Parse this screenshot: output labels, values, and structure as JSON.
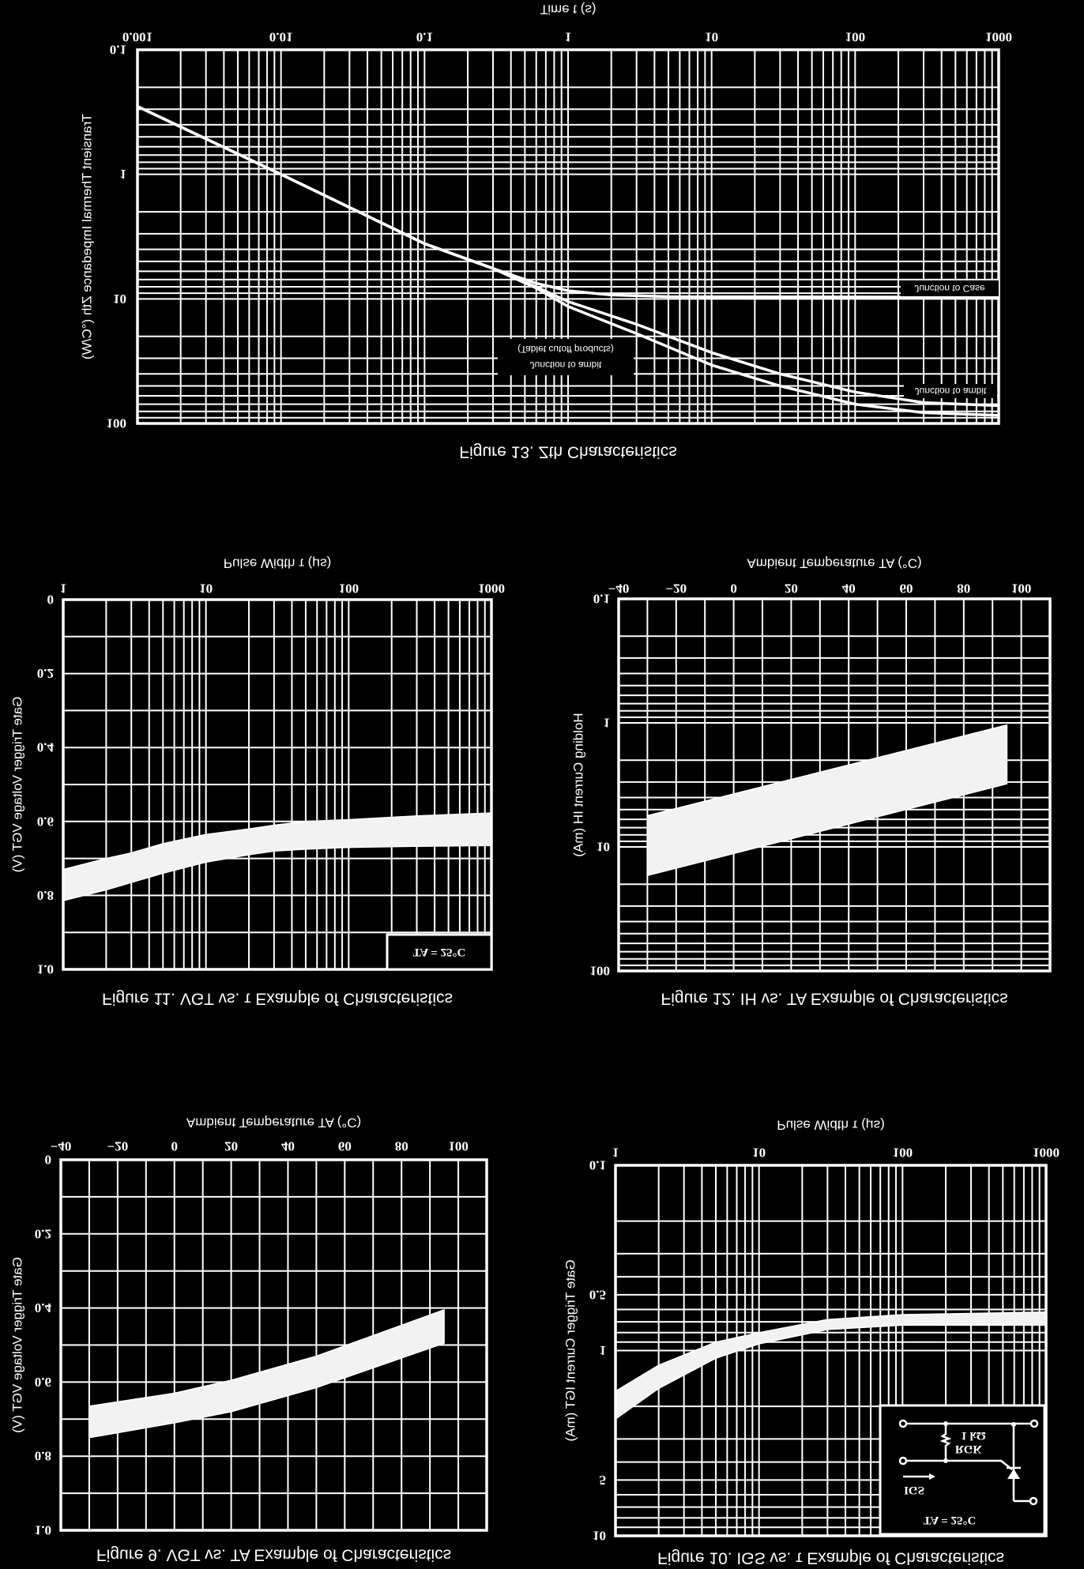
{
  "page": {
    "background": "#000000",
    "foreground": "#ffffff"
  },
  "chart_data": [
    {
      "type": "line",
      "title": "Figure 13. Zth Characteristics",
      "xlabel": "Time t (s)",
      "ylabel": "Transient Thermal Impedance Zth (°C/W)",
      "xscale": "log",
      "yscale": "log",
      "xlim": [
        0.001,
        1000
      ],
      "ylim": [
        0.1,
        100
      ],
      "xticks": [
        "0.001",
        "0.01",
        "0.1",
        "1",
        "10",
        "100",
        "1000"
      ],
      "yticks": [
        "0.1",
        "1",
        "10",
        "100"
      ],
      "grid": true,
      "series": [
        {
          "name": "Junction to Case",
          "x": [
            0.001,
            0.01,
            0.1,
            0.3,
            0.6,
            1,
            2,
            5,
            1000
          ],
          "y": [
            0.285,
            1.0,
            3.6,
            5.7,
            7.5,
            8.6,
            9.3,
            9.6,
            9.7
          ]
        },
        {
          "name": "Junction to ambit",
          "x": [
            0.001,
            0.01,
            0.1,
            0.3,
            0.6,
            1,
            3,
            10,
            30,
            100,
            300,
            1000
          ],
          "y": [
            0.285,
            1.0,
            3.6,
            5.7,
            8.0,
            10.5,
            16,
            27,
            40,
            56,
            68,
            72
          ]
        },
        {
          "name": "Junction to ambit",
          "note": "(Tablet cutoff products)",
          "x": [
            0.001,
            0.01,
            0.1,
            0.3,
            0.6,
            1,
            3,
            10,
            30,
            100,
            300,
            1000
          ],
          "y": [
            0.285,
            1.0,
            3.6,
            5.7,
            8.2,
            11.5,
            19,
            34,
            50,
            70,
            82,
            86
          ]
        }
      ]
    },
    {
      "type": "area",
      "title": "Figure 11. VGT vs. τ Example of Characteristics",
      "xlabel": "Pulse Width τ (μs)",
      "ylabel": "Gate Trigger Voltage VGT (V)",
      "xscale": "log",
      "yscale": "linear",
      "xlim": [
        1,
        1000
      ],
      "ylim": [
        0,
        1.0
      ],
      "xticks": [
        "1",
        "10",
        "100",
        "1000"
      ],
      "yticks": [
        "0",
        "0.2",
        "0.4",
        "0.6",
        "0.8",
        "1.0"
      ],
      "grid": true,
      "annotation": "TA = 25°C",
      "series": [
        {
          "x": [
            1,
            2,
            3,
            5,
            10,
            20,
            30,
            50,
            100,
            300,
            1000
          ],
          "lower": [
            0.73,
            0.7,
            0.685,
            0.66,
            0.635,
            0.62,
            0.61,
            0.6,
            0.595,
            0.585,
            0.577
          ],
          "upper": [
            0.814,
            0.785,
            0.765,
            0.74,
            0.71,
            0.69,
            0.68,
            0.675,
            0.67,
            0.667,
            0.665
          ]
        }
      ]
    },
    {
      "type": "area",
      "title": "Figure 12. IH vs. TA Example of Characteristics",
      "xlabel": "Ambient Temperature TA (°C)",
      "ylabel": "Holding Current IH (mA)",
      "xscale": "linear",
      "yscale": "log",
      "xlim": [
        -40,
        110
      ],
      "ylim": [
        0.1,
        100
      ],
      "xticks": [
        "−40",
        "−20",
        "0",
        "20",
        "40",
        "60",
        "80",
        "100"
      ],
      "yticks": [
        "0.1",
        "1",
        "10",
        "100"
      ],
      "grid": true,
      "series": [
        {
          "x": [
            -30,
            95
          ],
          "lower": [
            5.6,
            1.04
          ],
          "upper": [
            17,
            3.1
          ]
        }
      ]
    },
    {
      "type": "area",
      "title": "Figure 9. VGT vs. TA Example of Characteristics",
      "xlabel": "Ambient Temperature TA (°C)",
      "ylabel": "Gate Trigger Voltage VGT (V)",
      "xscale": "linear",
      "yscale": "linear",
      "xlim": [
        -40,
        110
      ],
      "ylim": [
        0,
        1.0
      ],
      "xticks": [
        "−40",
        "−20",
        "0",
        "20",
        "40",
        "60",
        "80",
        "100"
      ],
      "yticks": [
        "0",
        "0.2",
        "0.4",
        "0.6",
        "0.8",
        "1.0"
      ],
      "grid": true,
      "series": [
        {
          "x": [
            -30,
            0,
            20,
            50,
            95
          ],
          "lower": [
            0.665,
            0.63,
            0.595,
            0.53,
            0.405
          ],
          "upper": [
            0.75,
            0.71,
            0.68,
            0.615,
            0.495
          ]
        }
      ]
    },
    {
      "type": "area",
      "title": "Figure 10. IGS vs. τ Example of Characteristics",
      "xlabel": "Pulse Width τ (μs)",
      "ylabel": "Gate Trigger Current IGT (mA)",
      "xscale": "log",
      "yscale": "log",
      "xlim": [
        1,
        1000
      ],
      "ylim": [
        0.1,
        10
      ],
      "xticks": [
        "1",
        "10",
        "100",
        "1000"
      ],
      "yticks": [
        "0.1",
        "0.5",
        "1",
        "5",
        "10"
      ],
      "grid": true,
      "inset": {
        "condition": "TA = 25°C",
        "current": "IGS",
        "resistor": "RGK",
        "resistance": "1 kΩ"
      },
      "series": [
        {
          "x": [
            1,
            2,
            5,
            10,
            30,
            100,
            1000
          ],
          "lower": [
            1.66,
            1.2,
            0.9,
            0.8,
            0.68,
            0.64,
            0.62
          ],
          "upper": [
            2.34,
            1.6,
            1.1,
            0.92,
            0.77,
            0.73,
            0.73
          ]
        }
      ]
    }
  ]
}
